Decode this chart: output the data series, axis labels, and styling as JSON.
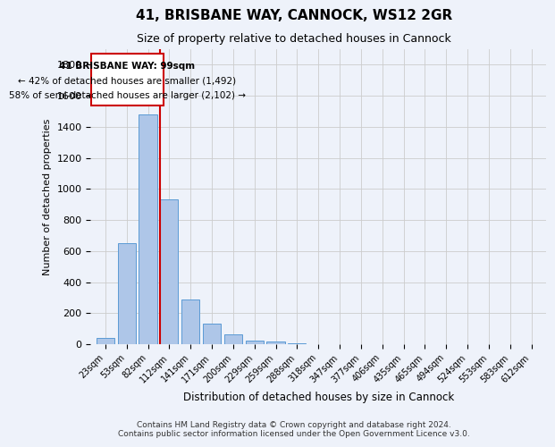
{
  "title": "41, BRISBANE WAY, CANNOCK, WS12 2GR",
  "subtitle": "Size of property relative to detached houses in Cannock",
  "xlabel": "Distribution of detached houses by size in Cannock",
  "ylabel": "Number of detached properties",
  "bar_color": "#aec6e8",
  "bar_edge_color": "#5b9bd5",
  "background_color": "#eef2fa",
  "grid_color": "#cccccc",
  "annotation_box_color": "#cc0000",
  "vline_color": "#cc0000",
  "categories": [
    "23sqm",
    "53sqm",
    "82sqm",
    "112sqm",
    "141sqm",
    "171sqm",
    "200sqm",
    "229sqm",
    "259sqm",
    "288sqm",
    "318sqm",
    "347sqm",
    "377sqm",
    "406sqm",
    "435sqm",
    "465sqm",
    "494sqm",
    "524sqm",
    "553sqm",
    "583sqm",
    "612sqm"
  ],
  "values": [
    40,
    650,
    1480,
    935,
    290,
    130,
    65,
    25,
    15,
    5,
    0,
    0,
    0,
    0,
    0,
    0,
    0,
    0,
    0,
    0,
    0
  ],
  "ylim": [
    0,
    1900
  ],
  "yticks": [
    0,
    200,
    400,
    600,
    800,
    1000,
    1200,
    1400,
    1600,
    1800
  ],
  "annotation_line1": "41 BRISBANE WAY: 99sqm",
  "annotation_line2": "← 42% of detached houses are smaller (1,492)",
  "annotation_line3": "58% of semi-detached houses are larger (2,102) →",
  "footer_line1": "Contains HM Land Registry data © Crown copyright and database right 2024.",
  "footer_line2": "Contains public sector information licensed under the Open Government Licence v3.0.",
  "title_fontsize": 11,
  "subtitle_fontsize": 9,
  "annotation_fontsize": 7.5
}
